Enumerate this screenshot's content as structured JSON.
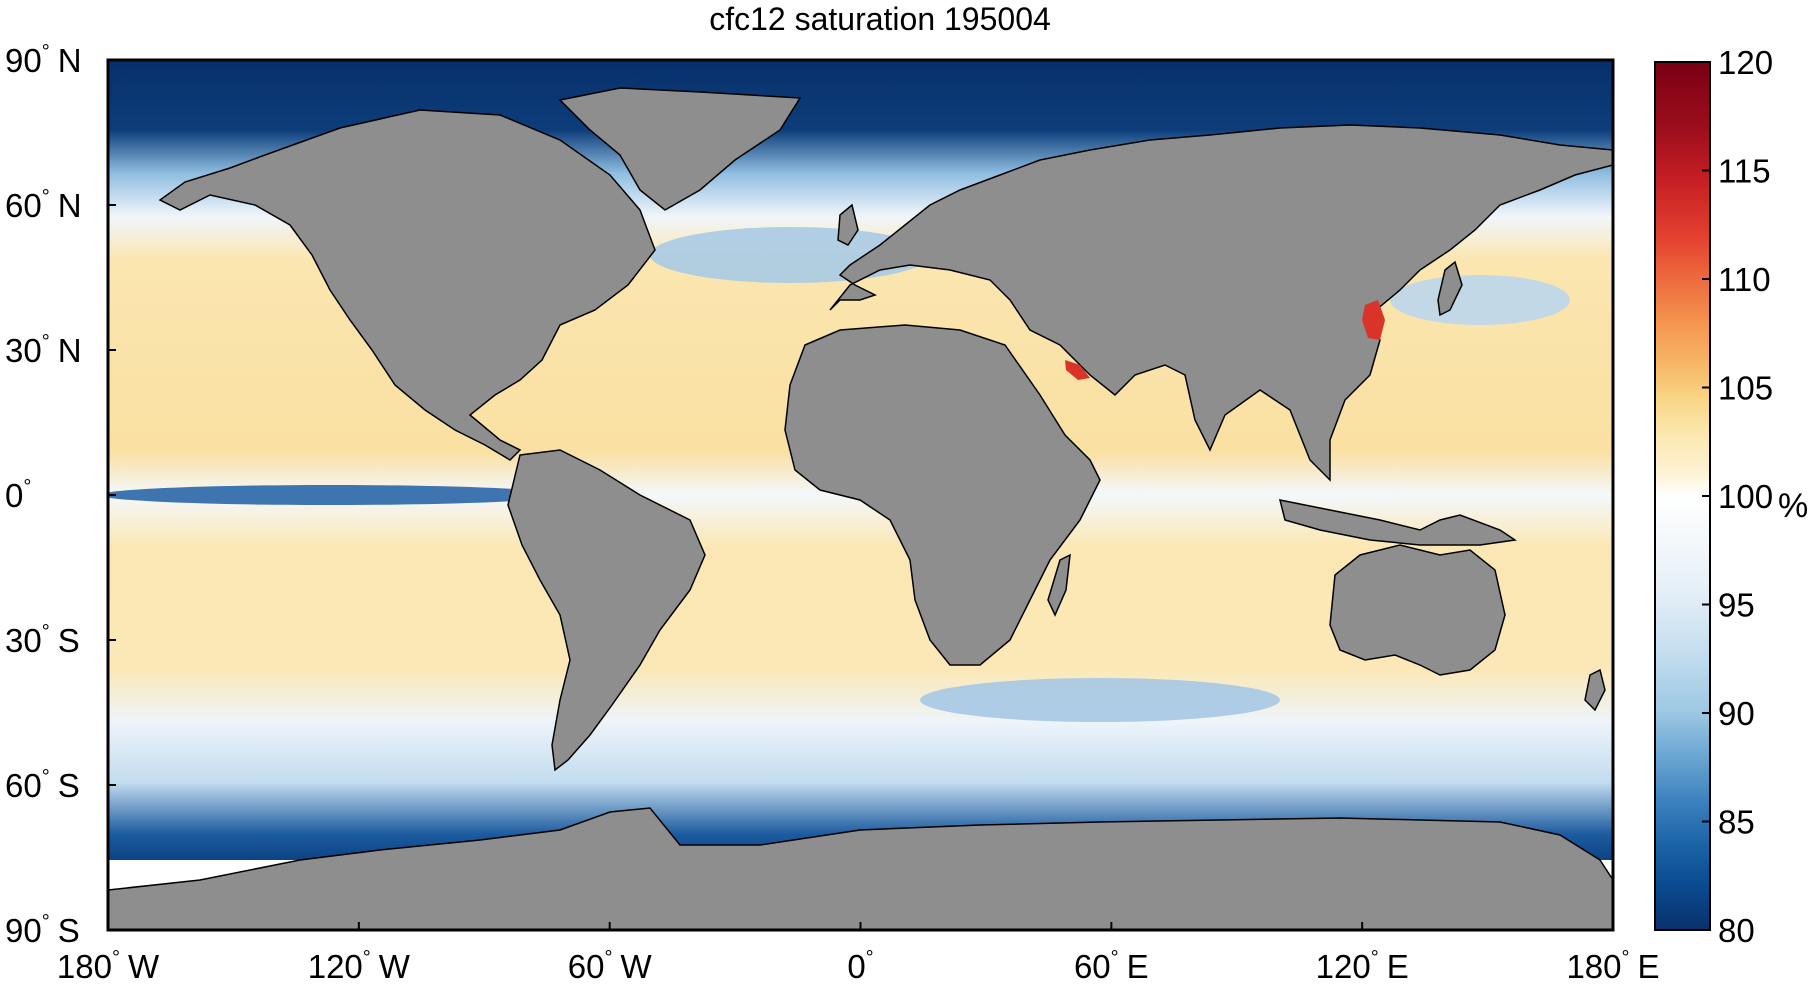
{
  "figure": {
    "title": "cfc12 saturation 195004"
  },
  "map": {
    "type": "global-map",
    "projection": "equirectangular",
    "variable": "cfc12 saturation",
    "land_color": "#8e8e8e",
    "lon_range": [
      -180,
      180
    ],
    "lat_range": [
      -90,
      90
    ],
    "x_ticks": [
      {
        "value": -180,
        "deg": "180",
        "hemi": "W"
      },
      {
        "value": -120,
        "deg": "120",
        "hemi": "W"
      },
      {
        "value": -60,
        "deg": "60",
        "hemi": "W"
      },
      {
        "value": 0,
        "deg": "0",
        "hemi": ""
      },
      {
        "value": 60,
        "deg": "60",
        "hemi": "E"
      },
      {
        "value": 120,
        "deg": "120",
        "hemi": "E"
      },
      {
        "value": 180,
        "deg": "180",
        "hemi": "E"
      }
    ],
    "y_ticks": [
      {
        "value": 90,
        "deg": "90",
        "hemi": "N"
      },
      {
        "value": 60,
        "deg": "60",
        "hemi": "N"
      },
      {
        "value": 30,
        "deg": "30",
        "hemi": "N"
      },
      {
        "value": 0,
        "deg": "0",
        "hemi": ""
      },
      {
        "value": -30,
        "deg": "30",
        "hemi": "S"
      },
      {
        "value": -60,
        "deg": "60",
        "hemi": "S"
      },
      {
        "value": -90,
        "deg": "90",
        "hemi": "S"
      }
    ]
  },
  "colorbar": {
    "unit": "%",
    "range": [
      80,
      120
    ],
    "ticks": [
      {
        "value": 80,
        "label": "80"
      },
      {
        "value": 85,
        "label": "85"
      },
      {
        "value": 90,
        "label": "90"
      },
      {
        "value": 95,
        "label": "95"
      },
      {
        "value": 100,
        "label": "100"
      },
      {
        "value": 105,
        "label": "105"
      },
      {
        "value": 110,
        "label": "110"
      },
      {
        "value": 115,
        "label": "115"
      },
      {
        "value": 120,
        "label": "120"
      }
    ],
    "colors": [
      "#08306b",
      "#0a4a90",
      "#1c64a8",
      "#3d82bf",
      "#6aa6d2",
      "#9cc7e3",
      "#c7dff0",
      "#e8f1f8",
      "#ffffff",
      "#fdf3d5",
      "#fbe6ac",
      "#f8d585",
      "#f7b867",
      "#f4954f",
      "#ee6a3e",
      "#e33f2f",
      "#c71f25",
      "#9c0d1c",
      "#7a0014"
    ],
    "color_positions": [
      80,
      82,
      84,
      86,
      88,
      90,
      93,
      96,
      100,
      101,
      103,
      104.5,
      106,
      108,
      110,
      112,
      114.5,
      117,
      120
    ]
  }
}
